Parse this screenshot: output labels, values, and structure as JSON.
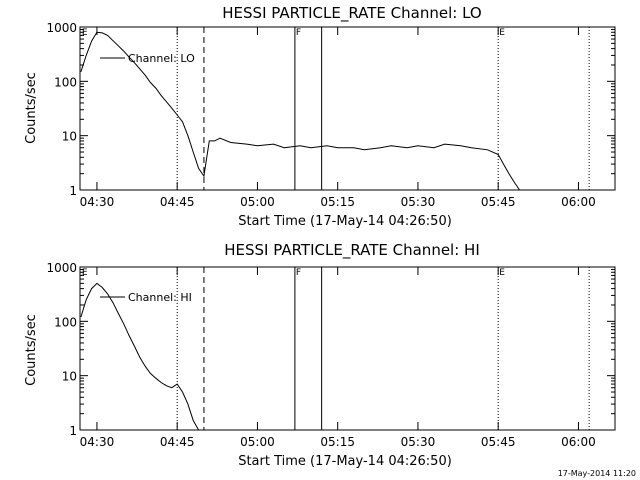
{
  "footer_timestamp": "17-May-2014 11:20",
  "chart_data": [
    {
      "type": "line",
      "title": "HESSI PARTICLE_RATE Channel: LO",
      "xlabel": "Start Time (17-May-14 04:26:50)",
      "ylabel": "Counts/sec",
      "yscale": "log",
      "ylim": [
        1,
        1000
      ],
      "x_ticks": [
        "04:30",
        "04:45",
        "05:00",
        "05:15",
        "05:30",
        "05:45",
        "06:00"
      ],
      "y_ticks": [
        "1",
        "10",
        "100",
        "1000"
      ],
      "legend": "Channel: LO",
      "legend_position": "top-left",
      "markers": [
        {
          "label": "E",
          "time": "04:27",
          "style": "none"
        },
        {
          "time": "04:45",
          "style": "dotted"
        },
        {
          "time": "04:50",
          "style": "dashed"
        },
        {
          "label": "F",
          "time": "05:07",
          "style": "solid"
        },
        {
          "time": "05:12",
          "style": "solid"
        },
        {
          "label": "E",
          "time": "05:45",
          "style": "dotted"
        },
        {
          "time": "06:02",
          "style": "dotted"
        }
      ],
      "series": [
        {
          "x": [
            "04:27",
            "04:28",
            "04:29",
            "04:30",
            "04:31",
            "04:32",
            "04:33",
            "04:34",
            "04:35",
            "04:36",
            "04:37",
            "04:38",
            "04:39",
            "04:40",
            "04:41",
            "04:42",
            "04:43",
            "04:44",
            "04:45",
            "04:46",
            "04:47",
            "04:48",
            "04:49",
            "04:50",
            "04:51",
            "04:52",
            "04:53",
            "04:55",
            "04:58",
            "05:00",
            "05:03",
            "05:05",
            "05:08",
            "05:10",
            "05:13",
            "05:15",
            "05:18",
            "05:20",
            "05:23",
            "05:25",
            "05:28",
            "05:30",
            "05:33",
            "05:35",
            "05:38",
            "05:40",
            "05:43",
            "05:45",
            "05:46",
            "05:47",
            "05:48",
            "05:49"
          ],
          "values": [
            150,
            300,
            550,
            800,
            780,
            700,
            560,
            450,
            360,
            280,
            220,
            170,
            130,
            95,
            75,
            55,
            42,
            32,
            24,
            18,
            10,
            5,
            2.5,
            1.8,
            8,
            8,
            9,
            7.5,
            7,
            6.5,
            7,
            6,
            6.5,
            6,
            6.5,
            6,
            6,
            5.5,
            6,
            6.5,
            6,
            6.5,
            6,
            7,
            6.5,
            6,
            5.5,
            4.5,
            3,
            2,
            1.4,
            1
          ]
        }
      ]
    },
    {
      "type": "line",
      "title": "HESSI PARTICLE_RATE Channel: HI",
      "xlabel": "Start Time (17-May-14 04:26:50)",
      "ylabel": "Counts/sec",
      "yscale": "log",
      "ylim": [
        1,
        1000
      ],
      "x_ticks": [
        "04:30",
        "04:45",
        "05:00",
        "05:15",
        "05:30",
        "05:45",
        "06:00"
      ],
      "y_ticks": [
        "1",
        "10",
        "100",
        "1000"
      ],
      "legend": "Channel: HI",
      "legend_position": "top-left",
      "markers": [
        {
          "label": "E",
          "time": "04:27",
          "style": "none"
        },
        {
          "time": "04:45",
          "style": "dotted"
        },
        {
          "time": "04:50",
          "style": "dashed"
        },
        {
          "label": "F",
          "time": "05:07",
          "style": "solid"
        },
        {
          "time": "05:12",
          "style": "solid"
        },
        {
          "label": "E",
          "time": "05:45",
          "style": "dotted"
        },
        {
          "time": "06:02",
          "style": "dotted"
        }
      ],
      "series": [
        {
          "x": [
            "04:27",
            "04:28",
            "04:29",
            "04:30",
            "04:31",
            "04:32",
            "04:33",
            "04:34",
            "04:35",
            "04:36",
            "04:37",
            "04:38",
            "04:39",
            "04:40",
            "04:41",
            "04:42",
            "04:43",
            "04:44",
            "04:45",
            "04:46",
            "04:47",
            "04:48",
            "04:49"
          ],
          "values": [
            120,
            250,
            400,
            500,
            420,
            320,
            220,
            140,
            90,
            55,
            35,
            22,
            15,
            11,
            9,
            7.5,
            6.5,
            6,
            7,
            5,
            3,
            1.5,
            1
          ]
        }
      ]
    }
  ]
}
